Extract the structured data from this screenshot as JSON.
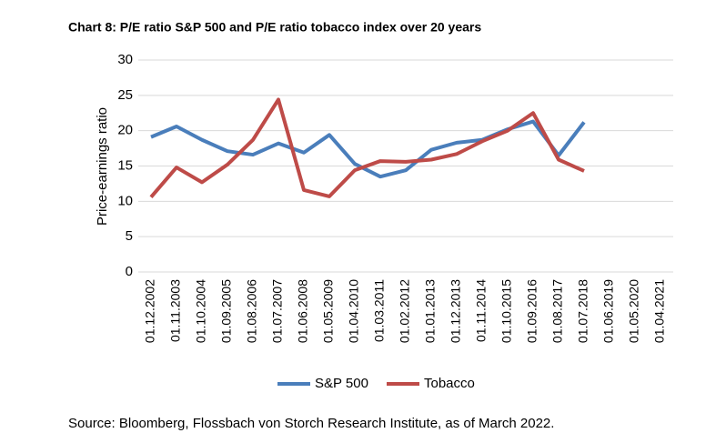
{
  "chart_data": {
    "type": "line",
    "title": "Chart 8: P/E ratio S&P 500 and P/E ratio tobacco index over 20 years",
    "y_label": "Price-earnings ratio",
    "source": "Source: Bloomberg, Flossbach von Storch Research Institute, as of March 2022.",
    "categories": [
      "01.12.2002",
      "01.11.2003",
      "01.10.2004",
      "01.09.2005",
      "01.08.2006",
      "01.07.2007",
      "01.06.2008",
      "01.05.2009",
      "01.04.2010",
      "01.03.2011",
      "01.02.2012",
      "01.01.2013",
      "01.12.2013",
      "01.11.2014",
      "01.10.2015",
      "01.09.2016",
      "01.08.2017",
      "01.07.2018",
      "01.06.2019",
      "01.05.2020",
      "01.04.2021"
    ],
    "series": [
      {
        "name": "S&P 500",
        "color": "#4a7ebb",
        "values": [
          19.1,
          20.6,
          18.7,
          17.1,
          16.6,
          18.2,
          16.9,
          19.4,
          15.3,
          13.5,
          14.4,
          17.3,
          18.3,
          18.7,
          20.2,
          21.3,
          16.5,
          21.2,
          null,
          null,
          null
        ]
      },
      {
        "name": "Tobacco",
        "color": "#be4b48",
        "values": [
          10.6,
          14.8,
          12.7,
          15.2,
          18.7,
          24.4,
          11.6,
          10.7,
          14.4,
          15.7,
          15.6,
          15.9,
          16.7,
          18.5,
          20.0,
          22.5,
          15.9,
          14.3,
          null,
          null,
          null
        ]
      }
    ],
    "ylim": [
      0,
      30
    ],
    "yticks": [
      0,
      5,
      10,
      15,
      20,
      25,
      30
    ],
    "grid": true,
    "legend": "bottom"
  }
}
